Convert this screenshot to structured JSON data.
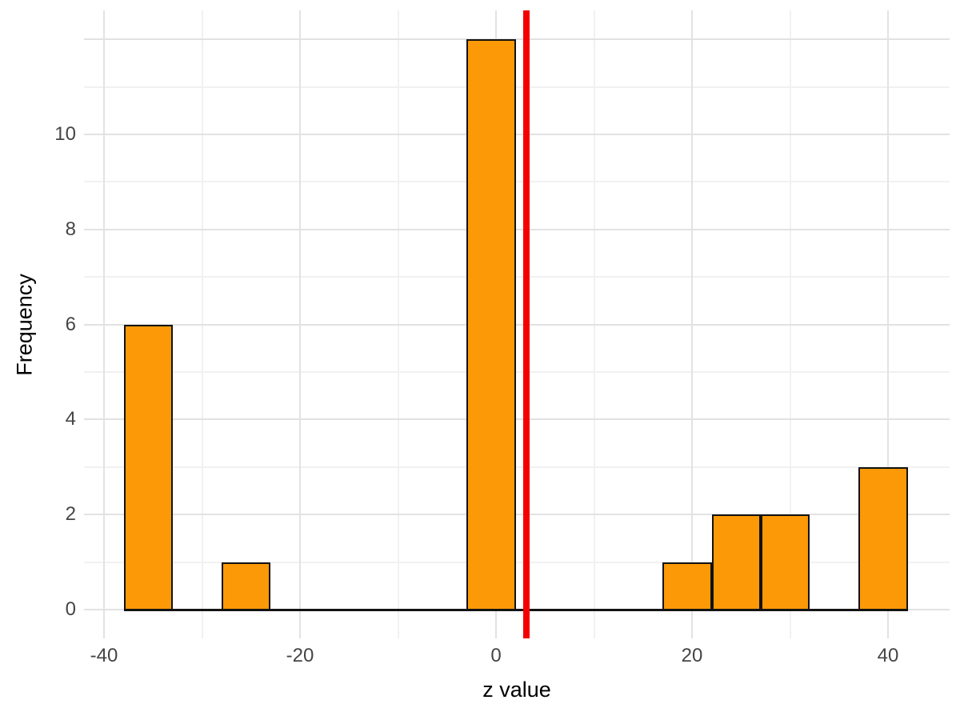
{
  "chart_data": {
    "type": "histogram",
    "title": "",
    "xlabel": "z value",
    "ylabel": "Frequency",
    "binwidth": 5,
    "bins": [
      {
        "x0": -38,
        "x1": -33,
        "count": 6
      },
      {
        "x0": -33,
        "x1": -28,
        "count": 0
      },
      {
        "x0": -28,
        "x1": -23,
        "count": 1
      },
      {
        "x0": -23,
        "x1": -18,
        "count": 0
      },
      {
        "x0": -18,
        "x1": -13,
        "count": 0
      },
      {
        "x0": -13,
        "x1": -8,
        "count": 0
      },
      {
        "x0": -8,
        "x1": -3,
        "count": 0
      },
      {
        "x0": -3,
        "x1": 2,
        "count": 12
      },
      {
        "x0": 2,
        "x1": 7,
        "count": 0
      },
      {
        "x0": 7,
        "x1": 12,
        "count": 0
      },
      {
        "x0": 12,
        "x1": 17,
        "count": 0
      },
      {
        "x0": 17,
        "x1": 22,
        "count": 1
      },
      {
        "x0": 22,
        "x1": 27,
        "count": 2
      },
      {
        "x0": 27,
        "x1": 32,
        "count": 2
      },
      {
        "x0": 32,
        "x1": 37,
        "count": 0
      },
      {
        "x0": 37,
        "x1": 42,
        "count": 3
      }
    ],
    "baseline": {
      "x0": -38,
      "x1": 42
    },
    "vline": {
      "x": 3.1,
      "color": "#f40000"
    },
    "bar_fill": "#fb9906",
    "bar_border": "#131313",
    "x_ticks": [
      {
        "value": -40,
        "label": "-40"
      },
      {
        "value": -20,
        "label": "-20"
      },
      {
        "value": 0,
        "label": "0"
      },
      {
        "value": 20,
        "label": "20"
      },
      {
        "value": 40,
        "label": "40"
      }
    ],
    "y_ticks": [
      {
        "value": 0,
        "label": "0"
      },
      {
        "value": 2,
        "label": "2"
      },
      {
        "value": 4,
        "label": "4"
      },
      {
        "value": 6,
        "label": "6"
      },
      {
        "value": 8,
        "label": "8"
      },
      {
        "value": 10,
        "label": "10"
      }
    ],
    "x_gridlines": {
      "major": [
        -40,
        -20,
        0,
        20,
        40
      ],
      "minor": [
        -30,
        -10,
        10,
        30
      ]
    },
    "y_gridlines": {
      "major": [
        0,
        2,
        4,
        6,
        8,
        10,
        12
      ],
      "minor": [
        1,
        3,
        5,
        7,
        9,
        11
      ]
    },
    "xlim": [
      -42,
      46
    ],
    "ylim": [
      -0.6,
      12.6
    ],
    "grid": true,
    "legend": false
  }
}
